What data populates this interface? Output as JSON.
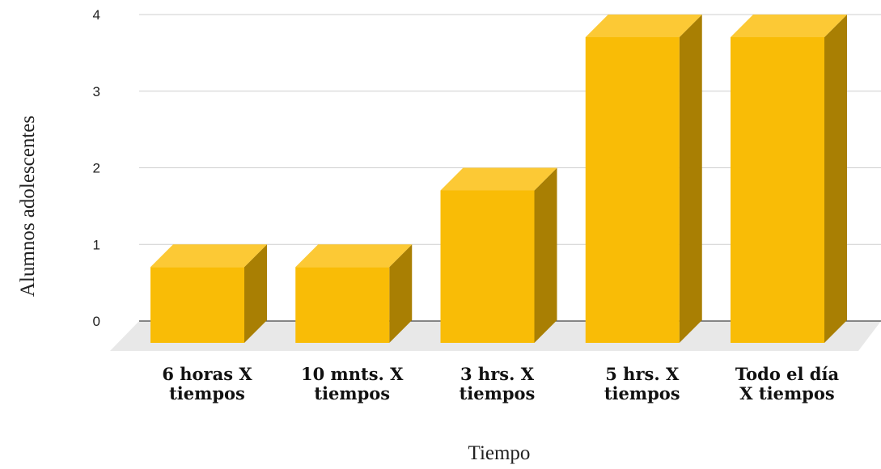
{
  "chart_data": {
    "type": "bar",
    "style": "3d",
    "categories": [
      [
        "6 horas X",
        "tiempos"
      ],
      [
        "10 mnts. X",
        "tiempos"
      ],
      [
        "3 hrs. X",
        "tiempos"
      ],
      [
        "5 hrs. X",
        "tiempos"
      ],
      [
        "Todo el día",
        "X tiempos"
      ]
    ],
    "values": [
      1,
      1,
      2,
      4,
      4
    ],
    "xlabel": "Tiempo",
    "ylabel": "Alumnos adolescentes",
    "ylim": [
      0,
      4
    ],
    "yticks": [
      "0",
      "1",
      "2",
      "3",
      "4"
    ],
    "grid": true,
    "colors": {
      "bar_front": "#F9BC06",
      "bar_top": "#FCC935",
      "bar_side": "#A97F03",
      "floor": "#E8E8E8",
      "gridline": "#CFCFCF",
      "baseline": "#444444"
    }
  }
}
